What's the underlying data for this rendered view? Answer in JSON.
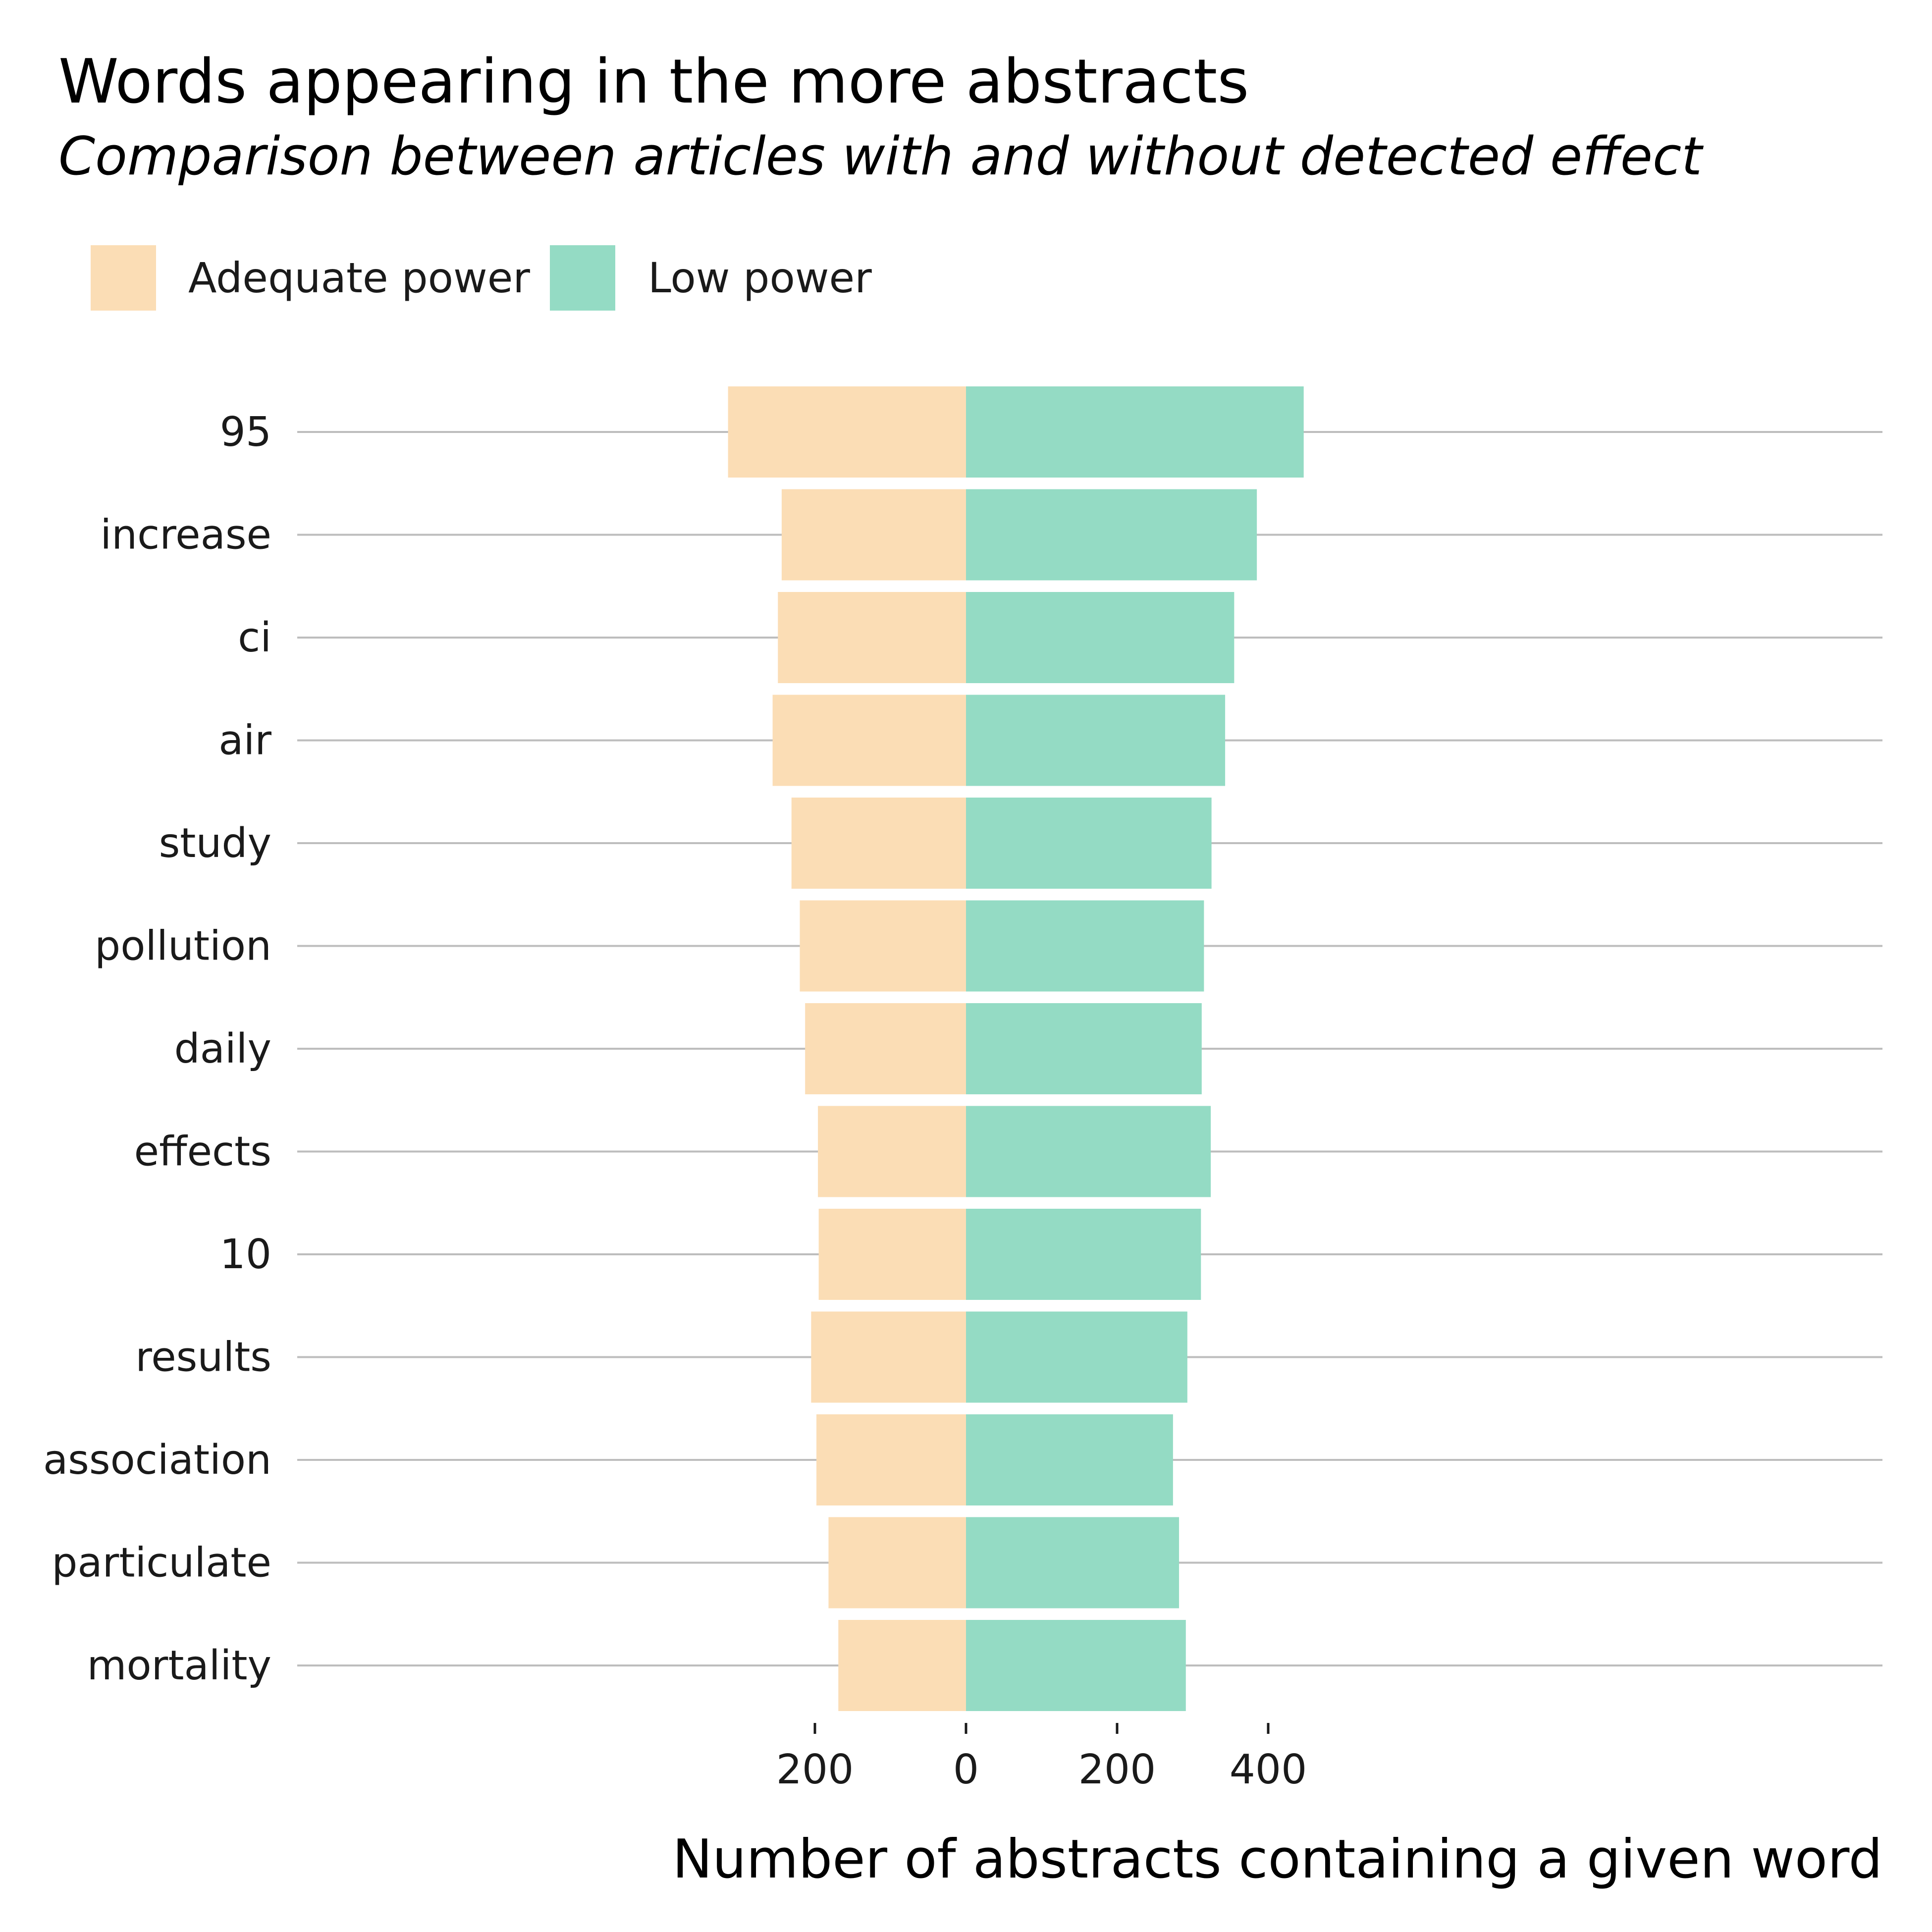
{
  "chart_data": {
    "type": "bar",
    "orientation": "horizontal-diverging",
    "title": "Words appearing in the more abstracts",
    "subtitle": "Comparison between articles with and without detected effect",
    "xlabel": "Number of abstracts containing a given word",
    "ylabel": "",
    "categories": [
      "95",
      "increase",
      "ci",
      "air",
      "study",
      "pollution",
      "daily",
      "effects",
      "10",
      "results",
      "association",
      "particulate",
      "mortality"
    ],
    "series": [
      {
        "name": "Adequate power",
        "color": "#FBDDB5",
        "direction": "left",
        "values": [
          315,
          244,
          249,
          256,
          231,
          220,
          213,
          196,
          195,
          205,
          198,
          182,
          169
        ]
      },
      {
        "name": "Low power",
        "color": "#94DBC4",
        "direction": "right",
        "values": [
          447,
          385,
          355,
          343,
          325,
          315,
          312,
          324,
          311,
          293,
          274,
          282,
          291
        ]
      }
    ],
    "xlim": [
      -315,
      485
    ],
    "xticks": [
      {
        "value": -200,
        "label": "200"
      },
      {
        "value": 0,
        "label": "0"
      },
      {
        "value": 200,
        "label": "200"
      },
      {
        "value": 400,
        "label": "400"
      }
    ],
    "grid": "horizontal",
    "legend": "top-left"
  }
}
